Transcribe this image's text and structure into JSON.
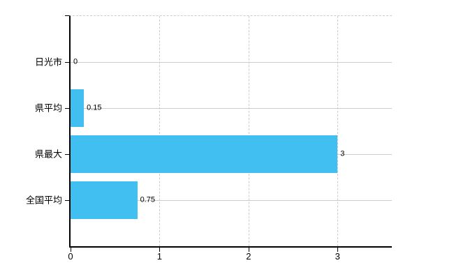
{
  "chart_data": {
    "type": "bar",
    "orientation": "horizontal",
    "categories": [
      "日光市",
      "県平均",
      "県最大",
      "全国平均"
    ],
    "values": [
      0,
      0.15,
      3,
      0.75
    ],
    "value_labels": [
      "0",
      "0.15",
      "3",
      "0.75"
    ],
    "x_ticks": [
      0,
      1,
      2,
      3
    ],
    "x_tick_labels": [
      "0",
      "1",
      "2",
      "3"
    ],
    "xlim": [
      0,
      3.61
    ],
    "grid": {
      "horizontal_lines": "solid",
      "vertical_lines": "dashed",
      "plot_top_border": "dashed"
    },
    "legend_position": "none",
    "colors": {
      "bar": "#41BFF0",
      "grid": "#cccccc",
      "axis": "#000000",
      "text": "#000000",
      "background": "#ffffff"
    }
  }
}
